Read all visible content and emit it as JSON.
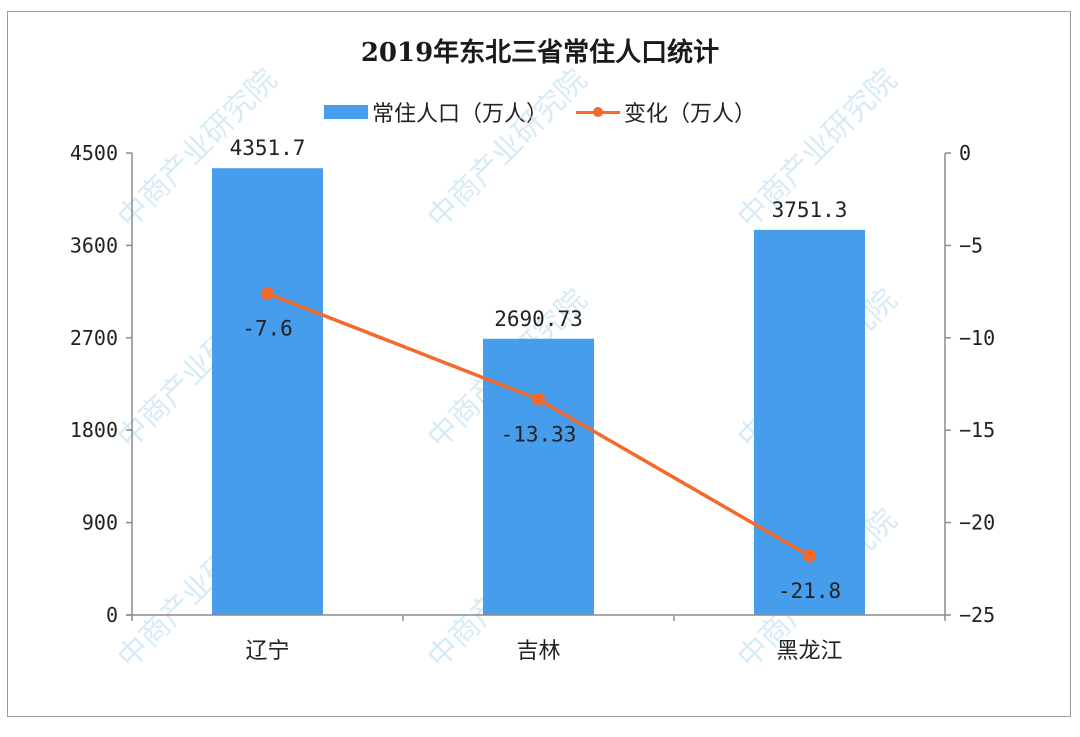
{
  "chart": {
    "title": "2019年东北三省常住人口统计",
    "legend": [
      {
        "label": "常住人口（万人）",
        "type": "bar",
        "color": "#459DEB"
      },
      {
        "label": "变化（万人）",
        "type": "line",
        "color": "#F26A2E"
      }
    ],
    "watermark": "中商产业研究院"
  },
  "chart_data": {
    "type": "bar+line",
    "title": "2019年东北三省常住人口统计",
    "categories": [
      "辽宁",
      "吉林",
      "黑龙江"
    ],
    "series": [
      {
        "name": "常住人口（万人）",
        "type": "bar",
        "axis": "left",
        "values": [
          4351.7,
          2690.73,
          3751.3
        ],
        "labels": [
          "4351.7",
          "2690.73",
          "3751.3"
        ]
      },
      {
        "name": "变化（万人）",
        "type": "line",
        "axis": "right",
        "values": [
          -7.6,
          -13.33,
          -21.8
        ],
        "labels": [
          "-7.6",
          "-13.33",
          "-21.8"
        ]
      }
    ],
    "y_left": {
      "ticks": [
        "0",
        "900",
        "1800",
        "2700",
        "3600",
        "4500"
      ],
      "ylim": [
        0,
        4500
      ]
    },
    "y_right": {
      "ticks": [
        "0",
        "-5",
        "-10",
        "-15",
        "-20",
        "-25"
      ],
      "ylim": [
        -25,
        0
      ]
    },
    "xlabel": "",
    "ylabel": "",
    "grid": false,
    "legend_position": "top"
  }
}
